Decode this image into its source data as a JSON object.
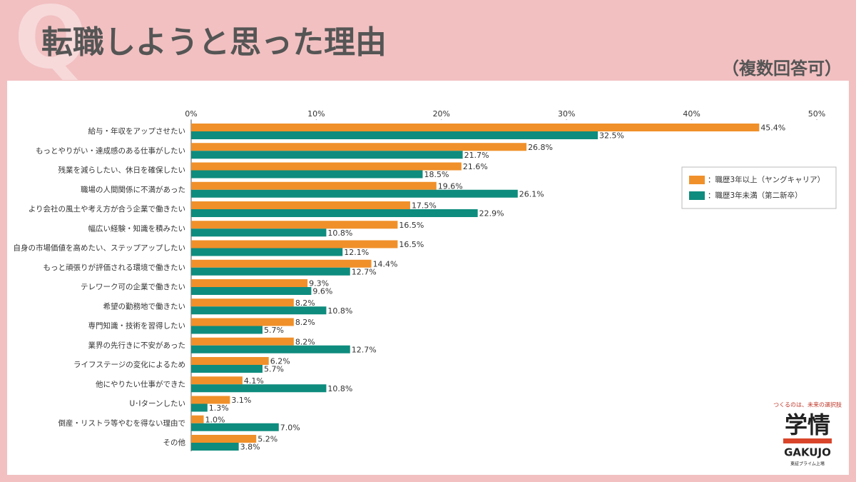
{
  "watermark": "Q",
  "chart_data": {
    "type": "hbar",
    "title": "転職しようと思った理由",
    "subtitle": "（複数回答可）",
    "categories": [
      "給与・年収をアップさせたい",
      "もっとやりがい・達成感のある仕事がしたい",
      "残業を減らしたい、休日を確保したい",
      "職場の人間関係に不満があった",
      "より会社の風土や考え方が合う企業で働きたい",
      "幅広い経験・知識を積みたい",
      "自身の市場価値を高めたい、ステップアップしたい",
      "もっと頑張りが評価される環境で働きたい",
      "テレワーク可の企業で働きたい",
      "希望の勤務地で働きたい",
      "専門知識・技術を習得したい",
      "業界の先行きに不安があった",
      "ライフステージの変化によるため",
      "他にやりたい仕事ができた",
      "U･Iターンしたい",
      "倒産・リストラ等やむを得ない理由で",
      "その他"
    ],
    "series": [
      {
        "name": "：職歴3年以上（ヤングキャリア）",
        "color": "#f0902a",
        "values": [
          45.4,
          26.8,
          21.6,
          19.6,
          17.5,
          16.5,
          16.5,
          14.4,
          9.3,
          8.2,
          8.2,
          8.2,
          6.2,
          4.1,
          3.1,
          1.0,
          5.2
        ],
        "value_labels": [
          "45.4%",
          "26.8%",
          "21.6%",
          "19.6%",
          "17.5%",
          "16.5%",
          "16.5%",
          "14.4%",
          "9.3%",
          "8.2%",
          "8.2%",
          "8.2%",
          "6.2%",
          "4.1%",
          "3.1%",
          "1.0%",
          "5.2%"
        ]
      },
      {
        "name": "：職歴3年未満（第二新卒）",
        "color": "#0e8c7e",
        "values": [
          32.5,
          21.7,
          18.5,
          26.1,
          22.9,
          10.8,
          12.1,
          12.7,
          9.6,
          10.8,
          5.7,
          12.7,
          5.7,
          10.8,
          1.3,
          7.0,
          3.8
        ],
        "value_labels": [
          "32.5%",
          "21.7%",
          "18.5%",
          "26.1%",
          "22.9%",
          "10.8%",
          "12.1%",
          "12.7%",
          "9.6%",
          "10.8%",
          "5.7%",
          "12.7%",
          "5.7%",
          "10.8%",
          "1.3%",
          "7.0%",
          "3.8%"
        ]
      }
    ],
    "xlim": [
      0,
      50
    ],
    "xticks": [
      {
        "value": 0,
        "label": "0%"
      },
      {
        "value": 10,
        "label": "10%"
      },
      {
        "value": 20,
        "label": "20%"
      },
      {
        "value": 30,
        "label": "30%"
      },
      {
        "value": 40,
        "label": "40%"
      },
      {
        "value": 50,
        "label": "50%"
      }
    ],
    "legend": "upper right"
  },
  "logo": {
    "tagline": "つくるのは、未来の選択肢",
    "name": "学情",
    "roman": "GAKUJO",
    "note": "東証プライム上場"
  }
}
